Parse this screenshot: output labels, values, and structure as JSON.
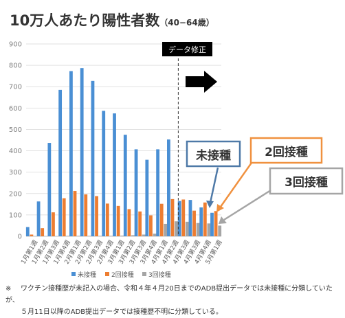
{
  "title": {
    "main": "10万人あたり陽性者数",
    "sub": "（40−64歳）"
  },
  "chart_data": {
    "type": "bar",
    "categories": [
      "1月第1週",
      "1月第2週",
      "1月第3週",
      "1月第4週",
      "2月第1週",
      "2月第2週",
      "2月第3週",
      "2月第4週",
      "3月第1週",
      "3月第2週",
      "3月第3週",
      "3月第4週",
      "4月第1週",
      "4月第2週",
      "4月第3週",
      "4月第3週",
      "4月第4週",
      "5月第1週"
    ],
    "series": [
      {
        "name": "未接種",
        "color": "#4a8fd4",
        "values": [
          43,
          163,
          437,
          685,
          773,
          787,
          727,
          587,
          575,
          475,
          407,
          358,
          407,
          453,
          165,
          170,
          135,
          110
        ]
      },
      {
        "name": "2回接種",
        "color": "#ed7d31",
        "values": [
          8,
          38,
          112,
          178,
          212,
          196,
          188,
          153,
          142,
          127,
          116,
          98,
          152,
          174,
          172,
          120,
          158,
          118
        ]
      },
      {
        "name": "3回接種",
        "color": "#a5a5a5",
        "values": [
          0,
          0,
          0,
          2,
          2,
          2,
          2,
          2,
          3,
          5,
          8,
          12,
          58,
          70,
          68,
          62,
          60,
          50
        ]
      }
    ],
    "ylim": [
      0,
      900
    ],
    "yticks": [
      0,
      100,
      200,
      300,
      400,
      500,
      600,
      700,
      800,
      900
    ],
    "grid": true,
    "legend": "bottom",
    "annotations": {
      "revision_label": "データ修正",
      "callout_unvaccinated": "未接種",
      "callout_two_dose": "2回接種",
      "callout_three_dose": "3回接種"
    }
  },
  "note": {
    "mark": "※",
    "line1": "ワクチン接種歴が未記入の場合、令和４年４月20日までのADB提出データでは未接種に分類していたが、",
    "line2": "５月11日以降のADB提出データでは接種歴不明に分類している。"
  }
}
